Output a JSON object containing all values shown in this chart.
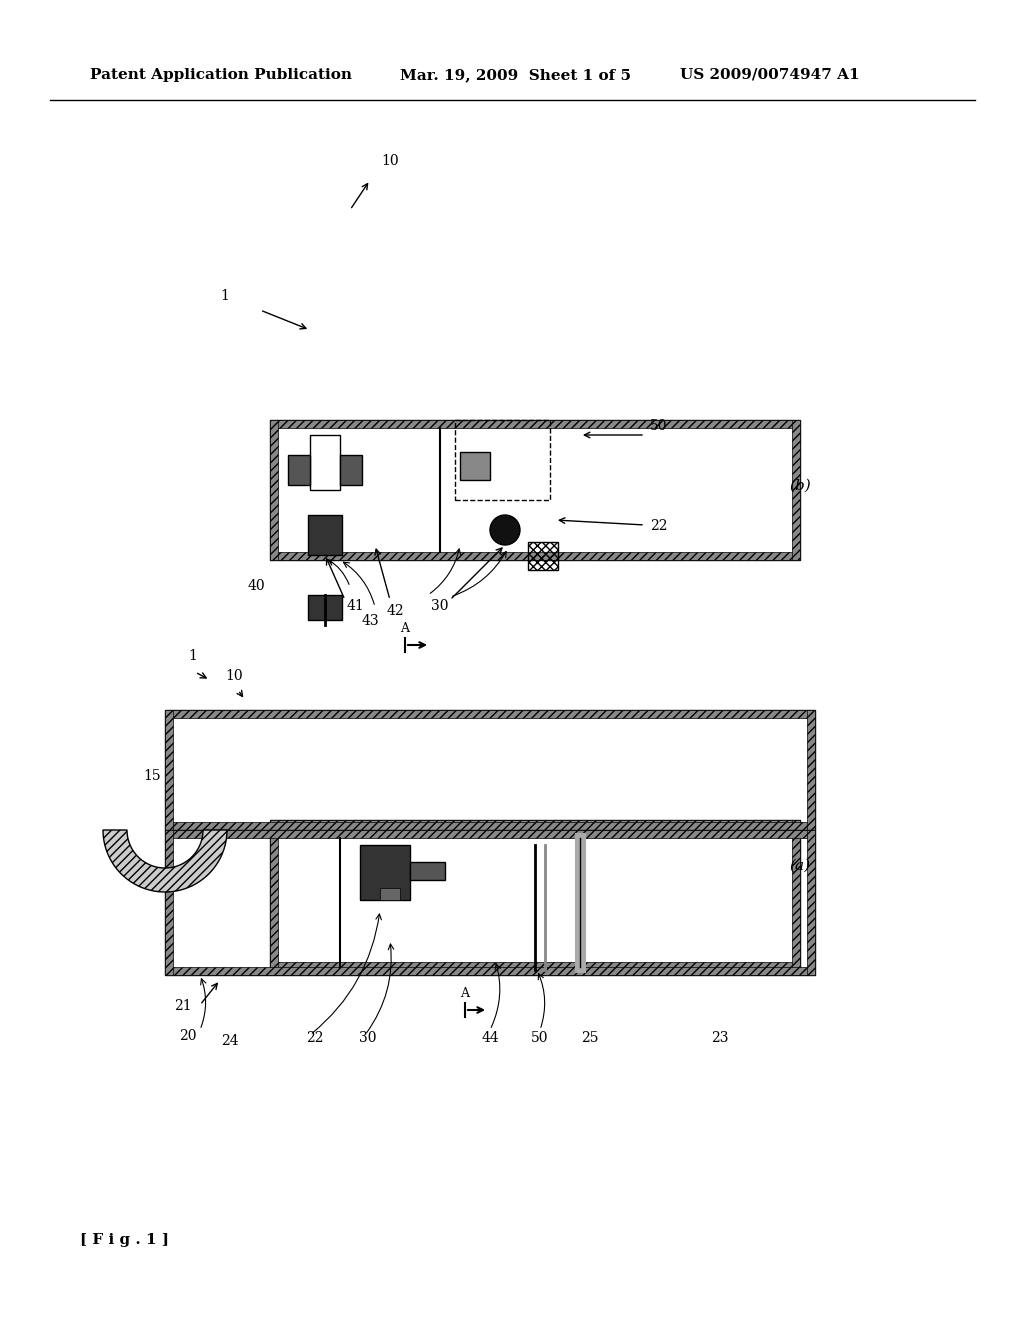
{
  "bg_color": "#ffffff",
  "header_left": "Patent Application Publication",
  "header_mid": "Mar. 19, 2009  Sheet 1 of 5",
  "header_right": "US 2009/0074947 A1",
  "footer_label": "[ F i g . 1 ]"
}
